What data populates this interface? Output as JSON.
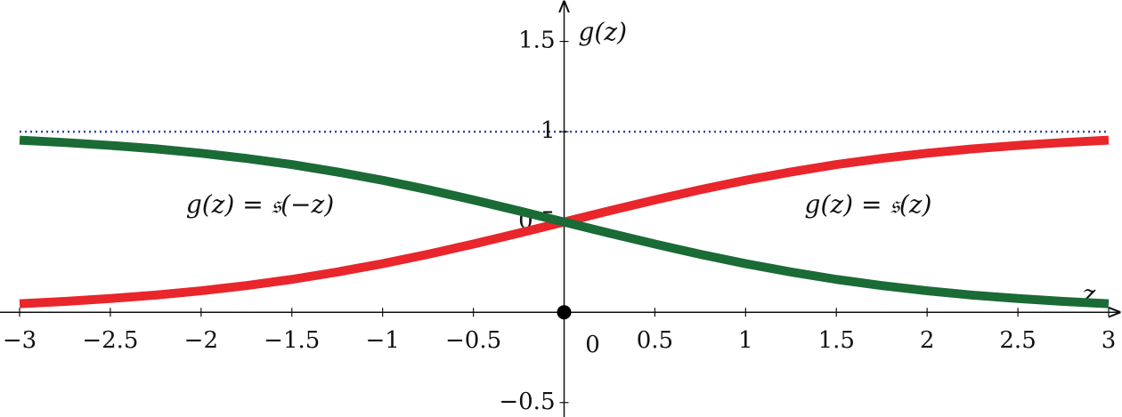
{
  "chart_data": {
    "type": "line",
    "x": [
      -3,
      -2.75,
      -2.5,
      -2.25,
      -2,
      -1.75,
      -1.5,
      -1.25,
      -1,
      -0.75,
      -0.5,
      -0.25,
      0,
      0.25,
      0.5,
      0.75,
      1,
      1.25,
      1.5,
      1.75,
      2,
      2.25,
      2.5,
      2.75,
      3
    ],
    "series": [
      {
        "name": "g(z) = 𝔰(z)",
        "color": "#e8262b",
        "values": [
          0.047,
          0.06,
          0.076,
          0.095,
          0.119,
          0.148,
          0.182,
          0.223,
          0.269,
          0.321,
          0.378,
          0.438,
          0.5,
          0.562,
          0.622,
          0.679,
          0.731,
          0.777,
          0.818,
          0.852,
          0.881,
          0.905,
          0.924,
          0.94,
          0.953
        ]
      },
      {
        "name": "g(z) = 𝔰(−z)",
        "color": "#1a6b35",
        "values": [
          0.953,
          0.94,
          0.924,
          0.905,
          0.881,
          0.852,
          0.818,
          0.777,
          0.731,
          0.679,
          0.622,
          0.562,
          0.5,
          0.438,
          0.378,
          0.321,
          0.269,
          0.223,
          0.182,
          0.148,
          0.119,
          0.095,
          0.076,
          0.06,
          0.047
        ]
      }
    ],
    "reference_line": {
      "value": 1,
      "color": "#3344aa",
      "style": "dotted"
    },
    "x_label": "z",
    "y_label": "g(z)",
    "xlim": [
      -3,
      3
    ],
    "ylim": [
      -0.58,
      1.69
    ],
    "xticks": [
      {
        "value": -3,
        "label": "−3"
      },
      {
        "value": -2.5,
        "label": "−2.5"
      },
      {
        "value": -2,
        "label": "−2"
      },
      {
        "value": -1.5,
        "label": "−1.5"
      },
      {
        "value": -1,
        "label": "−1"
      },
      {
        "value": -0.5,
        "label": "−0.5"
      },
      0,
      0.5,
      1,
      1.5,
      2,
      2.5,
      3
    ],
    "yticks": [
      {
        "value": -0.5,
        "label": "−0.5"
      },
      0.5,
      1,
      1.5
    ],
    "grid": false
  }
}
